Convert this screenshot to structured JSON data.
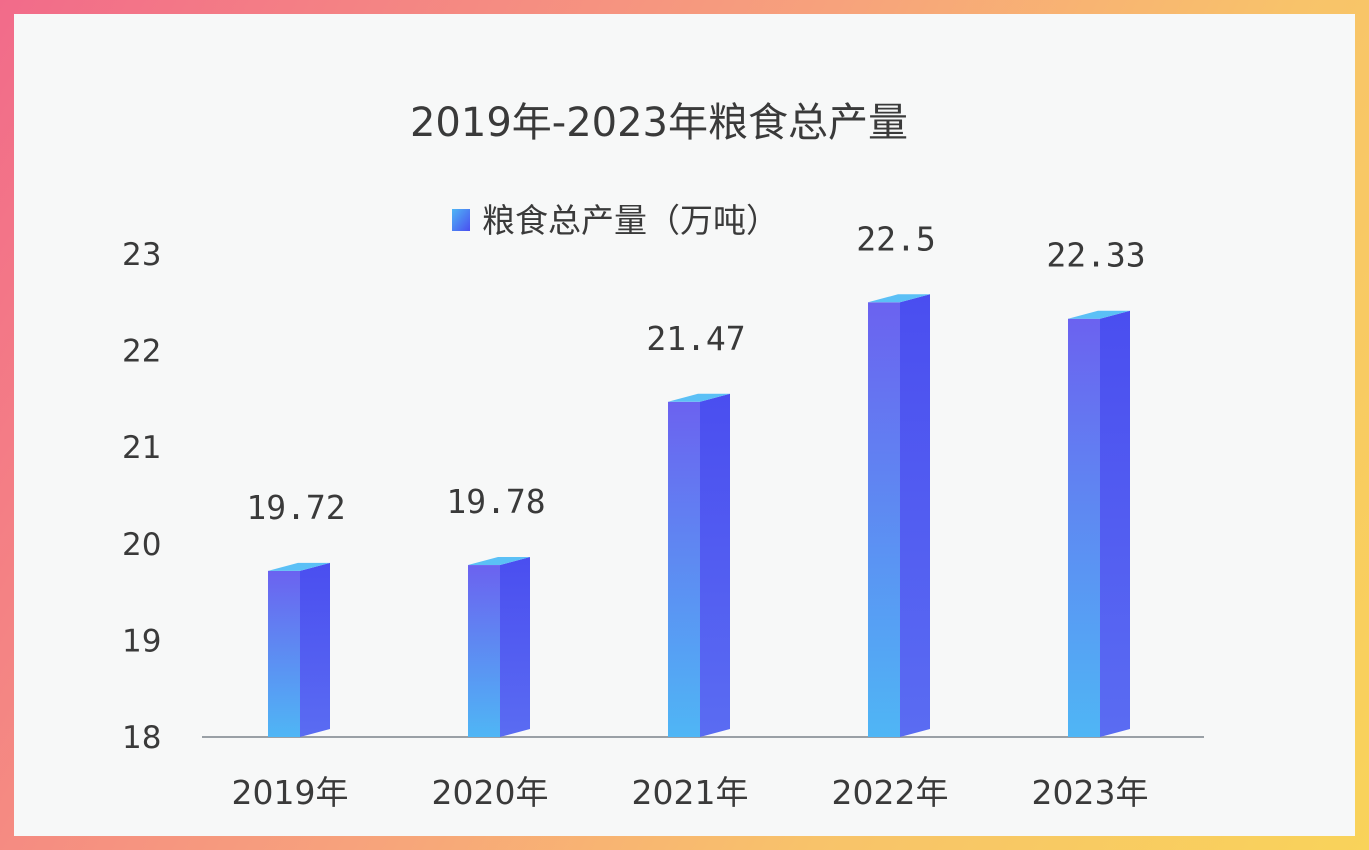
{
  "chart_data": {
    "type": "bar",
    "title": "2019年-2023年粮食总产量",
    "categories": [
      "2019年",
      "2020年",
      "2021年",
      "2022年",
      "2023年"
    ],
    "series": [
      {
        "name": "粮食总产量（万吨）",
        "values": [
          19.72,
          19.78,
          21.47,
          22.5,
          22.33
        ],
        "labels": [
          "19.72",
          "19.78",
          "21.47",
          "22.5",
          "22.33"
        ]
      }
    ],
    "yticks": [
      "18",
      "19",
      "20",
      "21",
      "22",
      "23"
    ],
    "ylim": [
      18,
      23
    ],
    "grid": false,
    "legend": "top-center",
    "colors": {
      "bar_front_top": "#6b62f0",
      "bar_front_bottom": "#4fb6f5",
      "bar_side": "#4a4ef0",
      "bar_cap": "#5bc0f6",
      "axis": "#9aa0a6",
      "frame_start": "#f26b8a",
      "frame_end": "#f9d35a"
    }
  }
}
